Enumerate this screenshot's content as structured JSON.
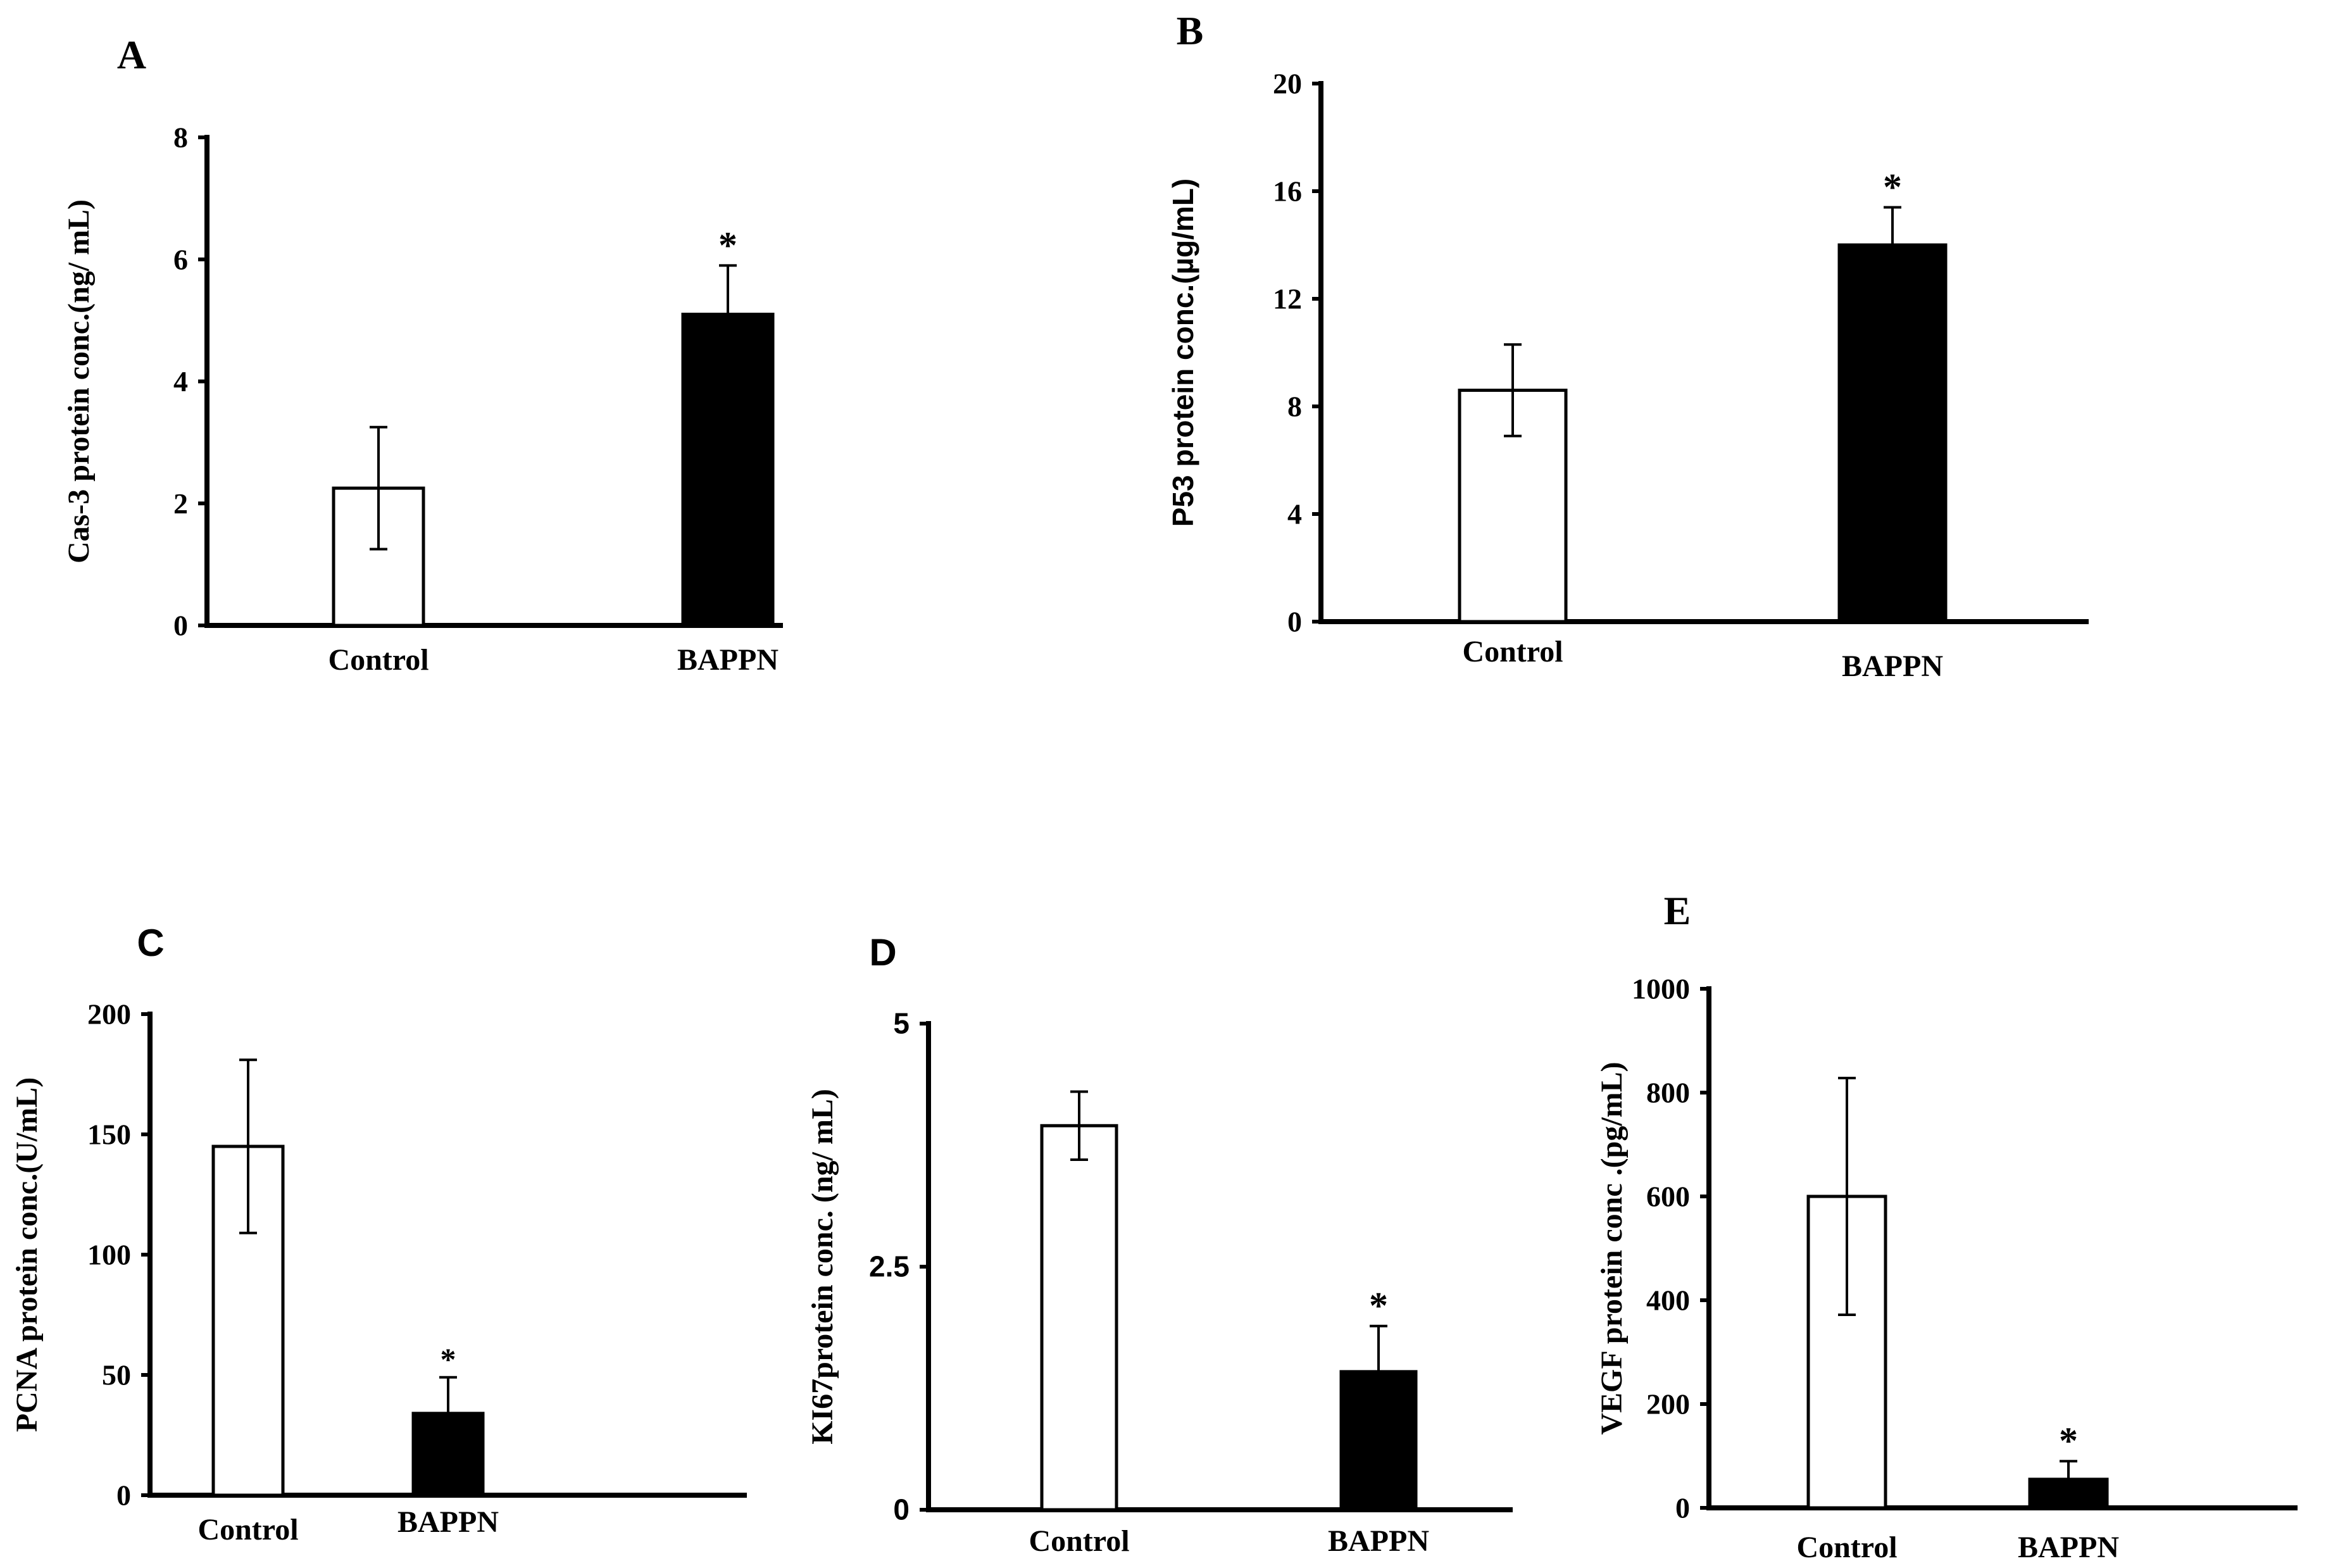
{
  "colors": {
    "axis": "#000000",
    "control_fill": "#ffffff",
    "bappn_fill": "#000000",
    "background": "#ffffff"
  },
  "chart_data": [
    {
      "id": "A",
      "panel_label": "A",
      "type": "bar",
      "ylabel": "Cas-3 protein conc.(ng/ mL)",
      "ylim": [
        0,
        8
      ],
      "yticks": [
        0,
        2,
        4,
        6,
        8
      ],
      "categories": [
        "Control",
        "BAPPN"
      ],
      "values": [
        2.25,
        5.1
      ],
      "error": [
        1.0,
        0.8
      ],
      "significance": [
        "",
        "*"
      ]
    },
    {
      "id": "B",
      "panel_label": "B",
      "type": "bar",
      "ylabel": "P53 protein conc.(µg/mL)",
      "ylim": [
        0,
        20
      ],
      "yticks": [
        0,
        4,
        8,
        12,
        16,
        20
      ],
      "categories": [
        "Control",
        "BAPPN"
      ],
      "values": [
        8.6,
        14.0
      ],
      "error": [
        1.7,
        1.4
      ],
      "significance": [
        "",
        "*"
      ]
    },
    {
      "id": "C",
      "panel_label": "C",
      "type": "bar",
      "ylabel": "PCNA protein conc.(U/mL)",
      "ylim": [
        0,
        200
      ],
      "yticks": [
        0,
        50,
        100,
        150,
        200
      ],
      "categories": [
        "Control",
        "BAPPN"
      ],
      "values": [
        145,
        34
      ],
      "error": [
        36,
        15
      ],
      "significance": [
        "",
        "*"
      ]
    },
    {
      "id": "D",
      "panel_label": "D",
      "type": "bar",
      "ylabel": "KI67protein conc. (ng/ mL)",
      "ylim": [
        0,
        5
      ],
      "yticks": [
        0,
        2.5,
        5
      ],
      "categories": [
        "Control",
        "BAPPN"
      ],
      "values": [
        3.95,
        1.42
      ],
      "error": [
        0.35,
        0.47
      ],
      "significance": [
        "",
        "*"
      ]
    },
    {
      "id": "E",
      "panel_label": "E",
      "type": "bar",
      "ylabel": "VEGF protein conc .(pg/mL)",
      "ylim": [
        0,
        1000
      ],
      "yticks": [
        0,
        200,
        400,
        600,
        800,
        1000
      ],
      "categories": [
        "Control",
        "BAPPN"
      ],
      "values": [
        600,
        55
      ],
      "error": [
        228,
        35
      ],
      "significance": [
        "",
        "*"
      ]
    }
  ]
}
